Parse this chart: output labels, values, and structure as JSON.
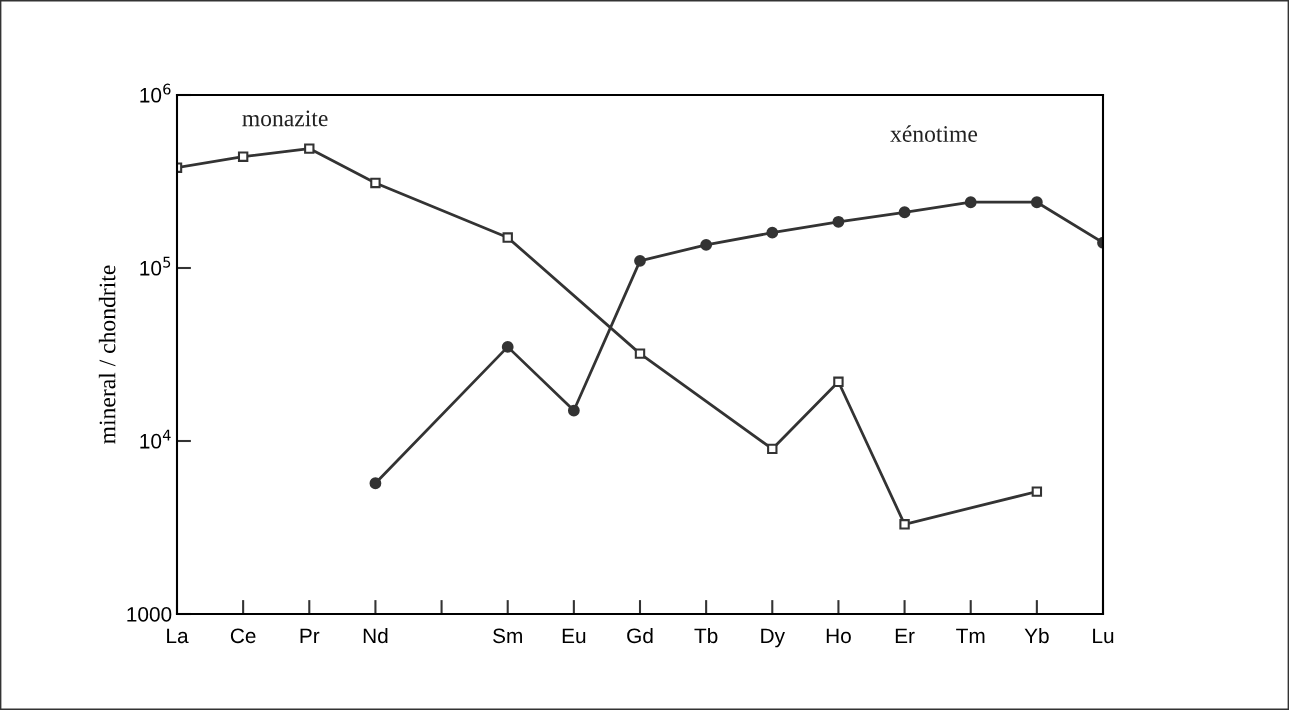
{
  "chart_data": {
    "type": "line",
    "ylabel": "mineral / chondrite",
    "categories": [
      "La",
      "Ce",
      "Pr",
      "Nd",
      null,
      "Sm",
      "Eu",
      "Gd",
      "Tb",
      "Dy",
      "Ho",
      "Er",
      "Tm",
      "Yb",
      "Lu"
    ],
    "series": [
      {
        "name": "monazite",
        "color": "#333333",
        "marker": "square",
        "values": [
          380000,
          440000,
          490000,
          310000,
          null,
          150000,
          null,
          32000,
          null,
          9000,
          22000,
          3300,
          null,
          5100,
          null
        ]
      },
      {
        "name": "xénotime",
        "color": "#333333",
        "marker": "circle",
        "values": [
          null,
          null,
          null,
          5700,
          null,
          35000,
          15000,
          110000,
          136000,
          160000,
          185000,
          210000,
          240000,
          240000,
          140000
        ]
      }
    ],
    "log": true,
    "ylim": [
      1000,
      1000000
    ],
    "yticks": [
      1000,
      {
        "value": 10000,
        "label": "10$^{4}$"
      },
      {
        "value": 100000,
        "label": "10$^{5}$"
      },
      {
        "value": 1000000,
        "label": "10$^{6}$"
      }
    ],
    "grid": false,
    "legend": false,
    "line_style": "solid"
  }
}
